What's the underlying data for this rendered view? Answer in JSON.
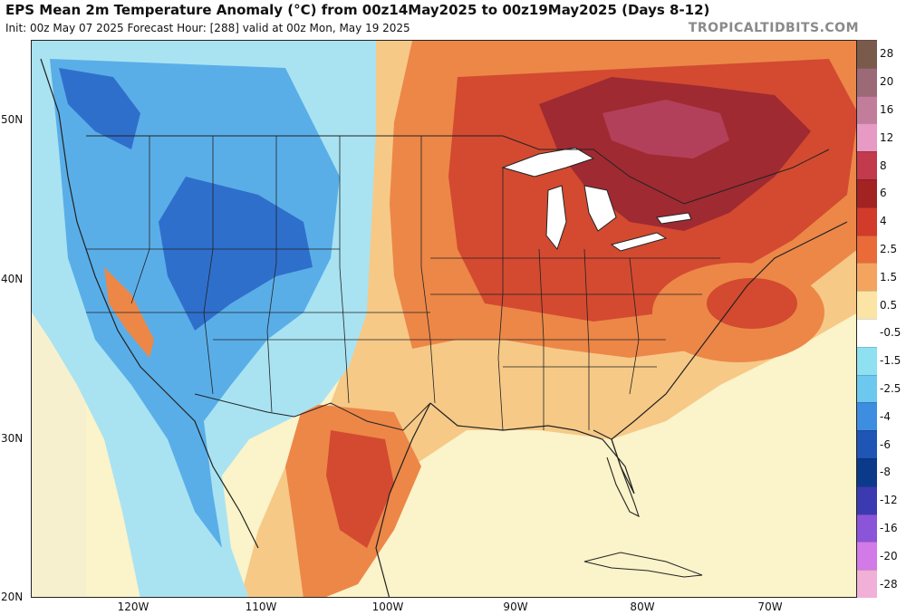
{
  "header": {
    "title": "EPS Mean 2m Temperature Anomaly (°C) from 00z14May2025 to 00z19May2025 (Days 8-12)",
    "subtitle": "Init: 00z May 07 2025   Forecast Hour: [288]   valid at 00z Mon, May 19 2025",
    "brand": "TROPICALTIDBITS.COM"
  },
  "axes": {
    "latitude_labels": [
      "50N",
      "40N",
      "30N",
      "20N"
    ],
    "longitude_labels": [
      "120W",
      "110W",
      "100W",
      "90W",
      "80W",
      "70W"
    ]
  },
  "legend": {
    "unit": "°C",
    "levels": [
      {
        "label": "28",
        "color": "#7a5a4a"
      },
      {
        "label": "20",
        "color": "#9c6a76"
      },
      {
        "label": "16",
        "color": "#c27d9a"
      },
      {
        "label": "12",
        "color": "#e69ac4"
      },
      {
        "label": "8",
        "color": "#c23a4c"
      },
      {
        "label": "6",
        "color": "#a32222"
      },
      {
        "label": "4",
        "color": "#d23a2a"
      },
      {
        "label": "2.5",
        "color": "#ea6a38"
      },
      {
        "label": "1.5",
        "color": "#f4a45e"
      },
      {
        "label": "0.5",
        "color": "#fbe4a4"
      },
      {
        "label": "-0.5",
        "color": "#ffffff"
      },
      {
        "label": "-1.5",
        "color": "#8fe0f0"
      },
      {
        "label": "-2.5",
        "color": "#6cc8ee"
      },
      {
        "label": "-4",
        "color": "#3d8ee0"
      },
      {
        "label": "-6",
        "color": "#1f55b4"
      },
      {
        "label": "-8",
        "color": "#0b3a8a"
      },
      {
        "label": "-12",
        "color": "#3b3ab0"
      },
      {
        "label": "-16",
        "color": "#8a55d8"
      },
      {
        "label": "-20",
        "color": "#d27ae8"
      },
      {
        "label": "-28",
        "color": "#f0b0d8"
      }
    ]
  },
  "colors": {
    "ocean_neutral": "#fbf3c9",
    "warm_light": "#f6c987",
    "warm_mid": "#ec8748",
    "warm_strong": "#d34a30",
    "warm_max": "#9f2a32",
    "cool_light": "#a9e3f2",
    "cool_mid": "#5aaee8",
    "cool_strong": "#2f6fcc",
    "lake": "#ffffff",
    "boundary": "#222222"
  }
}
